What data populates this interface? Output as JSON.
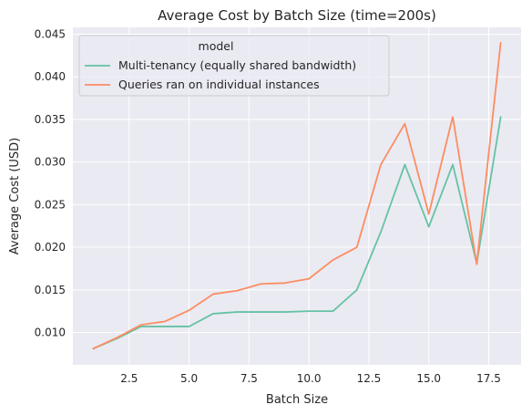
{
  "chart_data": {
    "type": "line",
    "title": "Average Cost by Batch Size (time=200s)",
    "xlabel": "Batch Size",
    "ylabel": "Average Cost (USD)",
    "xlim": [
      0.15,
      18.85
    ],
    "ylim": [
      0.0062,
      0.0458
    ],
    "xticks": [
      2.5,
      5.0,
      7.5,
      10.0,
      12.5,
      15.0,
      17.5
    ],
    "yticks": [
      0.01,
      0.015,
      0.02,
      0.025,
      0.03,
      0.035,
      0.04,
      0.045
    ],
    "grid": true,
    "legend": {
      "title": "model",
      "placement": "top-left"
    },
    "x": [
      1,
      2,
      3,
      4,
      5,
      6,
      7,
      8,
      9,
      10,
      11,
      12,
      13,
      14,
      15,
      16,
      17,
      18
    ],
    "series": [
      {
        "name": "Multi-tenancy (equally shared bandwidth)",
        "color": "#66c2a5",
        "values": [
          0.0081,
          0.0093,
          0.0107,
          0.0107,
          0.0107,
          0.0122,
          0.0124,
          0.0124,
          0.0124,
          0.0125,
          0.0125,
          0.015,
          0.0218,
          0.0297,
          0.0224,
          0.0297,
          0.0181,
          0.0353
        ]
      },
      {
        "name": "Queries ran on individual instances",
        "color": "#fc8d62",
        "values": [
          0.0081,
          0.0094,
          0.0109,
          0.0113,
          0.0126,
          0.0145,
          0.0149,
          0.0157,
          0.0158,
          0.0163,
          0.0185,
          0.02,
          0.0297,
          0.0345,
          0.0239,
          0.0353,
          0.018,
          0.044
        ]
      }
    ]
  }
}
